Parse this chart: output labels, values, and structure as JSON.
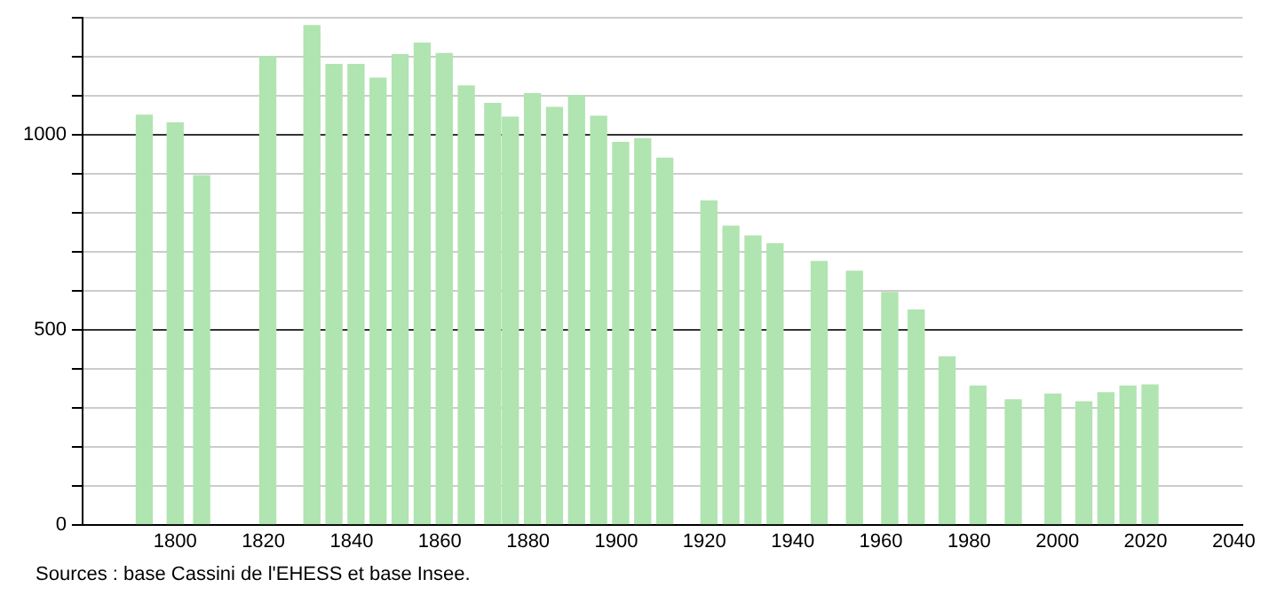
{
  "chart_data": {
    "type": "bar",
    "x": [
      1793,
      1800,
      1806,
      1821,
      1831,
      1836,
      1841,
      1846,
      1851,
      1856,
      1861,
      1866,
      1872,
      1876,
      1881,
      1886,
      1891,
      1896,
      1901,
      1906,
      1911,
      1921,
      1926,
      1931,
      1936,
      1946,
      1954,
      1962,
      1968,
      1975,
      1982,
      1990,
      1999,
      2006,
      2011,
      2016,
      2021
    ],
    "values": [
      1050,
      1030,
      895,
      1200,
      1280,
      1180,
      1180,
      1145,
      1205,
      1235,
      1208,
      1125,
      1080,
      1045,
      1105,
      1070,
      1100,
      1047,
      980,
      990,
      940,
      830,
      765,
      740,
      720,
      675,
      650,
      595,
      550,
      430,
      355,
      320,
      335,
      315,
      338,
      355,
      358
    ],
    "color": "#b0e4b0",
    "xlim": [
      1779,
      2042
    ],
    "xticks": [
      1800,
      1820,
      1840,
      1860,
      1880,
      1900,
      1920,
      1940,
      1960,
      1980,
      2000,
      2020,
      2040
    ],
    "ylim": [
      0,
      1300
    ],
    "yticks": [
      0,
      {
        "value": 100,
        "label": null
      },
      {
        "value": 200,
        "label": null
      },
      {
        "value": 300,
        "label": null
      },
      {
        "value": 400,
        "label": null
      },
      500,
      {
        "value": 600,
        "label": null
      },
      {
        "value": 700,
        "label": null
      },
      {
        "value": 800,
        "label": null
      },
      {
        "value": 900,
        "label": null
      },
      1000,
      {
        "value": 1100,
        "label": null
      },
      {
        "value": 1200,
        "label": null
      },
      {
        "value": 1300,
        "label": null
      }
    ],
    "grid": "y",
    "annotations": [
      "Sources : base Cassini de l'EHESS et base Insee."
    ]
  }
}
